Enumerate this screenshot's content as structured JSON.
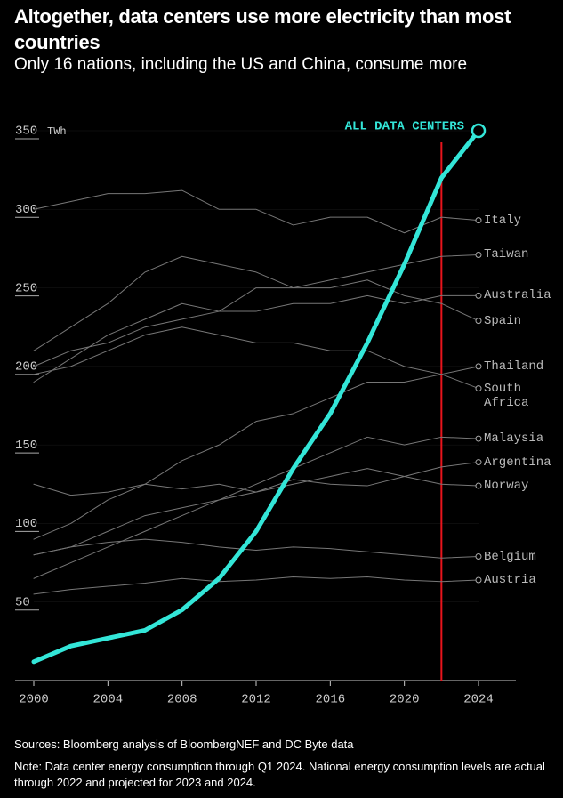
{
  "chart_data": {
    "type": "line",
    "title": "Altogether, data centers use more electricity than most countries",
    "subtitle": "Only 16 nations, including the US and China, consume more",
    "y_unit": "TWh",
    "x": [
      2000,
      2002,
      2004,
      2006,
      2008,
      2010,
      2012,
      2014,
      2016,
      2018,
      2020,
      2022,
      2024
    ],
    "xlim": [
      2000,
      2024
    ],
    "xticks": [
      2000,
      2004,
      2008,
      2012,
      2016,
      2020,
      2024
    ],
    "ylim": [
      0,
      350
    ],
    "yticks": [
      50,
      100,
      150,
      200,
      250,
      300,
      350
    ],
    "projection_start": 2022,
    "projection_color": "#e8141c",
    "series": [
      {
        "name": "ALL DATA CENTERS",
        "color": "#33e6d8",
        "highlight": true,
        "values": [
          12,
          22,
          27,
          32,
          45,
          65,
          95,
          135,
          170,
          215,
          265,
          320,
          350
        ]
      },
      {
        "name": "Italy",
        "color": "#777777",
        "values": [
          300,
          305,
          310,
          310,
          312,
          300,
          300,
          290,
          295,
          295,
          285,
          295,
          293
        ]
      },
      {
        "name": "Taiwan",
        "color": "#777777",
        "values": [
          190,
          205,
          220,
          230,
          240,
          235,
          250,
          250,
          255,
          260,
          265,
          270,
          271
        ]
      },
      {
        "name": "Australia",
        "color": "#777777",
        "values": [
          200,
          210,
          215,
          225,
          230,
          235,
          235,
          240,
          240,
          245,
          240,
          245,
          245
        ]
      },
      {
        "name": "Spain",
        "color": "#777777",
        "values": [
          210,
          225,
          240,
          260,
          270,
          265,
          260,
          250,
          250,
          255,
          245,
          240,
          229
        ]
      },
      {
        "name": "Thailand",
        "color": "#777777",
        "values": [
          90,
          100,
          115,
          125,
          140,
          150,
          165,
          170,
          180,
          190,
          190,
          195,
          200
        ]
      },
      {
        "name": "South Africa",
        "color": "#777777",
        "values": [
          195,
          200,
          210,
          220,
          225,
          220,
          215,
          215,
          210,
          210,
          200,
          195,
          186
        ]
      },
      {
        "name": "Malaysia",
        "color": "#777777",
        "values": [
          65,
          75,
          85,
          95,
          105,
          115,
          125,
          135,
          145,
          155,
          150,
          155,
          154
        ]
      },
      {
        "name": "Argentina",
        "color": "#777777",
        "values": [
          80,
          85,
          95,
          105,
          110,
          115,
          120,
          125,
          130,
          135,
          130,
          136,
          139
        ]
      },
      {
        "name": "Norway",
        "color": "#777777",
        "values": [
          125,
          118,
          120,
          125,
          122,
          125,
          120,
          128,
          125,
          124,
          130,
          125,
          124
        ]
      },
      {
        "name": "Belgium",
        "color": "#777777",
        "values": [
          80,
          85,
          88,
          90,
          88,
          85,
          83,
          85,
          84,
          82,
          80,
          78,
          79
        ]
      },
      {
        "name": "Austria",
        "color": "#777777",
        "values": [
          55,
          58,
          60,
          62,
          65,
          63,
          64,
          66,
          65,
          66,
          64,
          63,
          64
        ]
      }
    ],
    "sources": "Sources: Bloomberg analysis of BloombergNEF and DC Byte data",
    "note": "Note: Data center energy consumption through Q1 2024. National energy consumption levels are actual through 2022 and projected for 2023 and 2024."
  }
}
